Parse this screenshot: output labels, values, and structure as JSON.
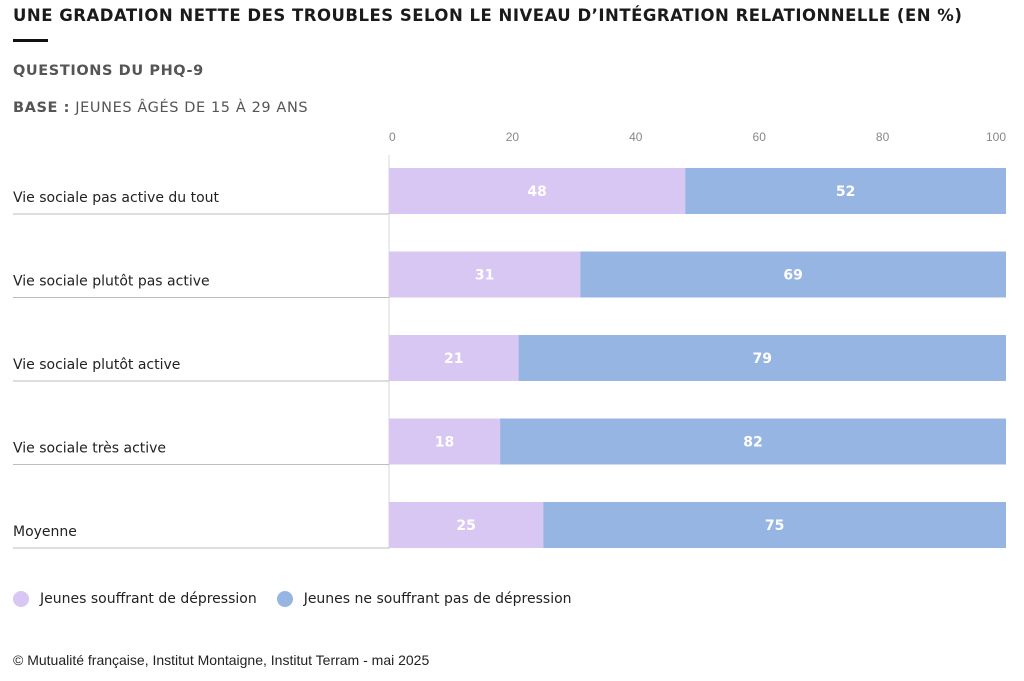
{
  "header": {
    "title": "UNE GRADATION NETTE DES TROUBLES SELON LE NIVEAU D’INTÉGRATION RELATIONNELLE (EN %)",
    "subtitle": "QUESTIONS DU PHQ-9",
    "base_label": "BASE :",
    "base_text": "JEUNES ÂGÉS DE 15 À 29 ANS"
  },
  "colors": {
    "depression": "#d8c7f2",
    "no_depression": "#97b5e3"
  },
  "chart_data": {
    "type": "bar",
    "orientation": "horizontal",
    "stacked": true,
    "categories": [
      "Vie sociale pas active du tout",
      "Vie sociale plutôt pas active",
      "Vie sociale plutôt active",
      "Vie sociale très active",
      "Moyenne"
    ],
    "series": [
      {
        "name": "Jeunes souffrant de dépression",
        "values": [
          48,
          31,
          21,
          18,
          25
        ]
      },
      {
        "name": "Jeunes ne souffrant pas de dépression",
        "values": [
          52,
          69,
          79,
          82,
          75
        ]
      }
    ],
    "xlim": [
      0,
      100
    ],
    "xticks": [
      0,
      20,
      40,
      60,
      80,
      100
    ],
    "grid": false,
    "legend_position": "bottom-left"
  },
  "footer": {
    "source": "© Mutualité française, Institut Montaigne, Institut Terram - mai 2025"
  }
}
